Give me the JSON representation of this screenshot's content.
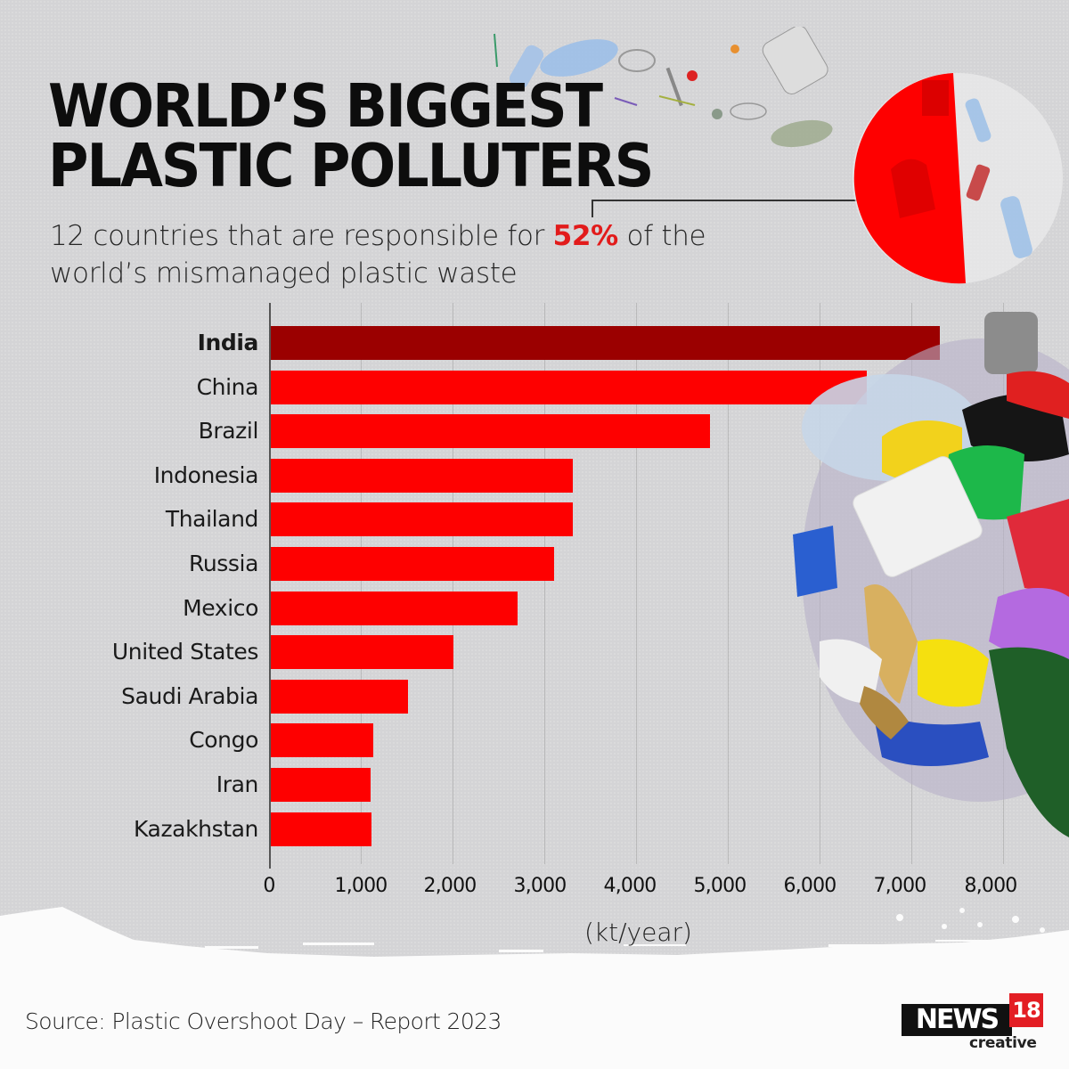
{
  "header": {
    "title_line1": "WORLD’S BIGGEST",
    "title_line2": "PLASTIC POLLUTERS",
    "subtitle_pre": "12 countries that are responsible for ",
    "subtitle_highlight": "52%",
    "subtitle_post": " of the world’s mismanaged plastic waste"
  },
  "pie": {
    "share_percent": 52,
    "color": "#fe0000"
  },
  "chart": {
    "xlabel": "(kt/year)",
    "ticks": [
      "0",
      "1,000",
      "2,000",
      "3,000",
      "4,000",
      "5,000",
      "6,000",
      "7,000",
      "8,000"
    ]
  },
  "chart_data": {
    "type": "bar",
    "orientation": "horizontal",
    "title": "World's Biggest Plastic Polluters",
    "subtitle": "12 countries that are responsible for 52% of the world's mismanaged plastic waste",
    "categories": [
      "India",
      "China",
      "Brazil",
      "Indonesia",
      "Thailand",
      "Russia",
      "Mexico",
      "United States",
      "Saudi Arabia",
      "Congo",
      "Iran",
      "Kazakhstan"
    ],
    "values": [
      7300,
      6500,
      4800,
      3300,
      3300,
      3100,
      2700,
      2000,
      1500,
      1130,
      1100,
      1110
    ],
    "xlabel": "(kt/year)",
    "ylabel": "",
    "xlim": [
      0,
      8000
    ],
    "xticks": [
      0,
      1000,
      2000,
      3000,
      4000,
      5000,
      6000,
      7000,
      8000
    ],
    "grid": true,
    "highlight": "India",
    "colors": {
      "default": "#fe0000",
      "highlight": "#9b0000"
    },
    "inset_pie": {
      "share_percent": 52,
      "label": "52%"
    }
  },
  "footer": {
    "source": "Source: Plastic Overshoot Day – Report 2023",
    "logo_main": "NEWS",
    "logo_number": "18",
    "logo_sub": "creative"
  }
}
